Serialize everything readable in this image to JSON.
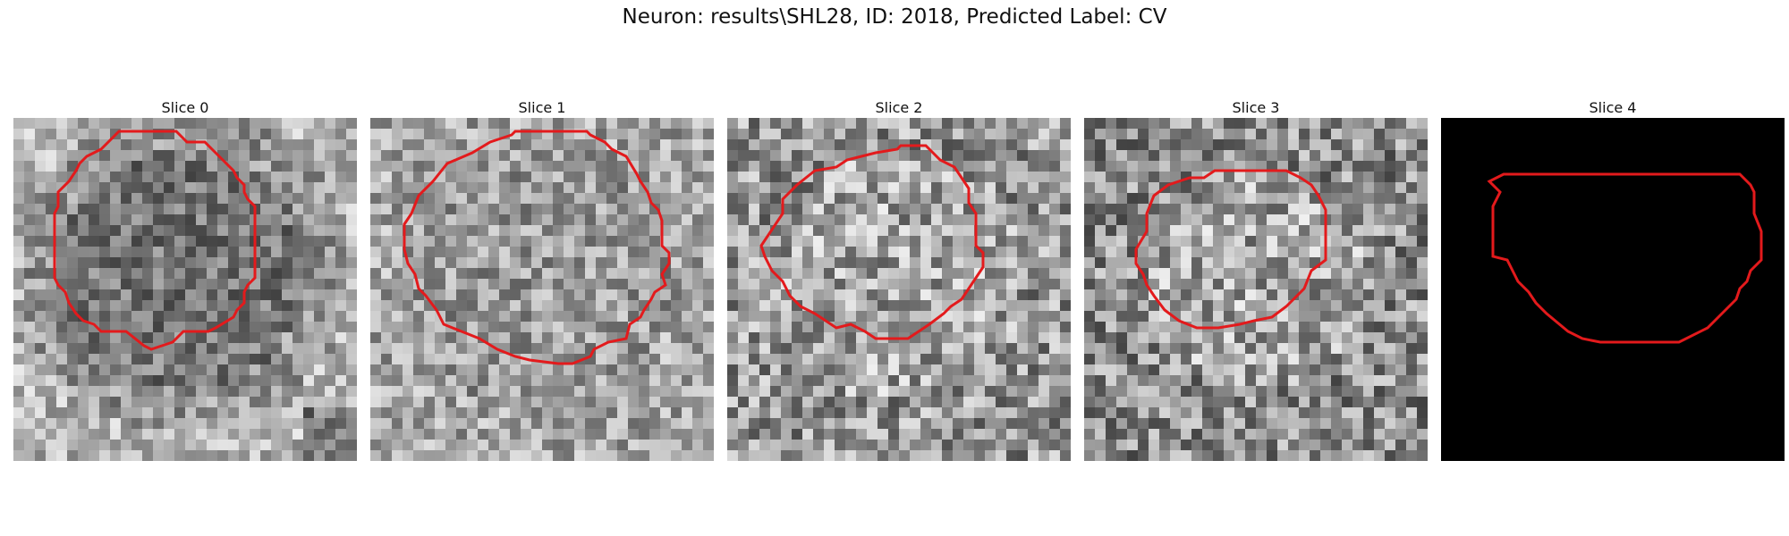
{
  "figure": {
    "title": "Neuron: results\\SHL28, ID: 2018, Predicted Label: CV"
  },
  "panels": [
    {
      "title": "Slice 0",
      "image": "grayscale-noise-dark-cell",
      "contour_color": "#e31a1c"
    },
    {
      "title": "Slice 1",
      "image": "grayscale-noise-cell",
      "contour_color": "#e31a1c"
    },
    {
      "title": "Slice 2",
      "image": "grayscale-noise-bright-cell",
      "contour_color": "#e31a1c"
    },
    {
      "title": "Slice 3",
      "image": "grayscale-noise-bright-center-cell",
      "contour_color": "#e31a1c"
    },
    {
      "title": "Slice 4",
      "image": "black-empty",
      "contour_color": "#e31a1c"
    }
  ]
}
